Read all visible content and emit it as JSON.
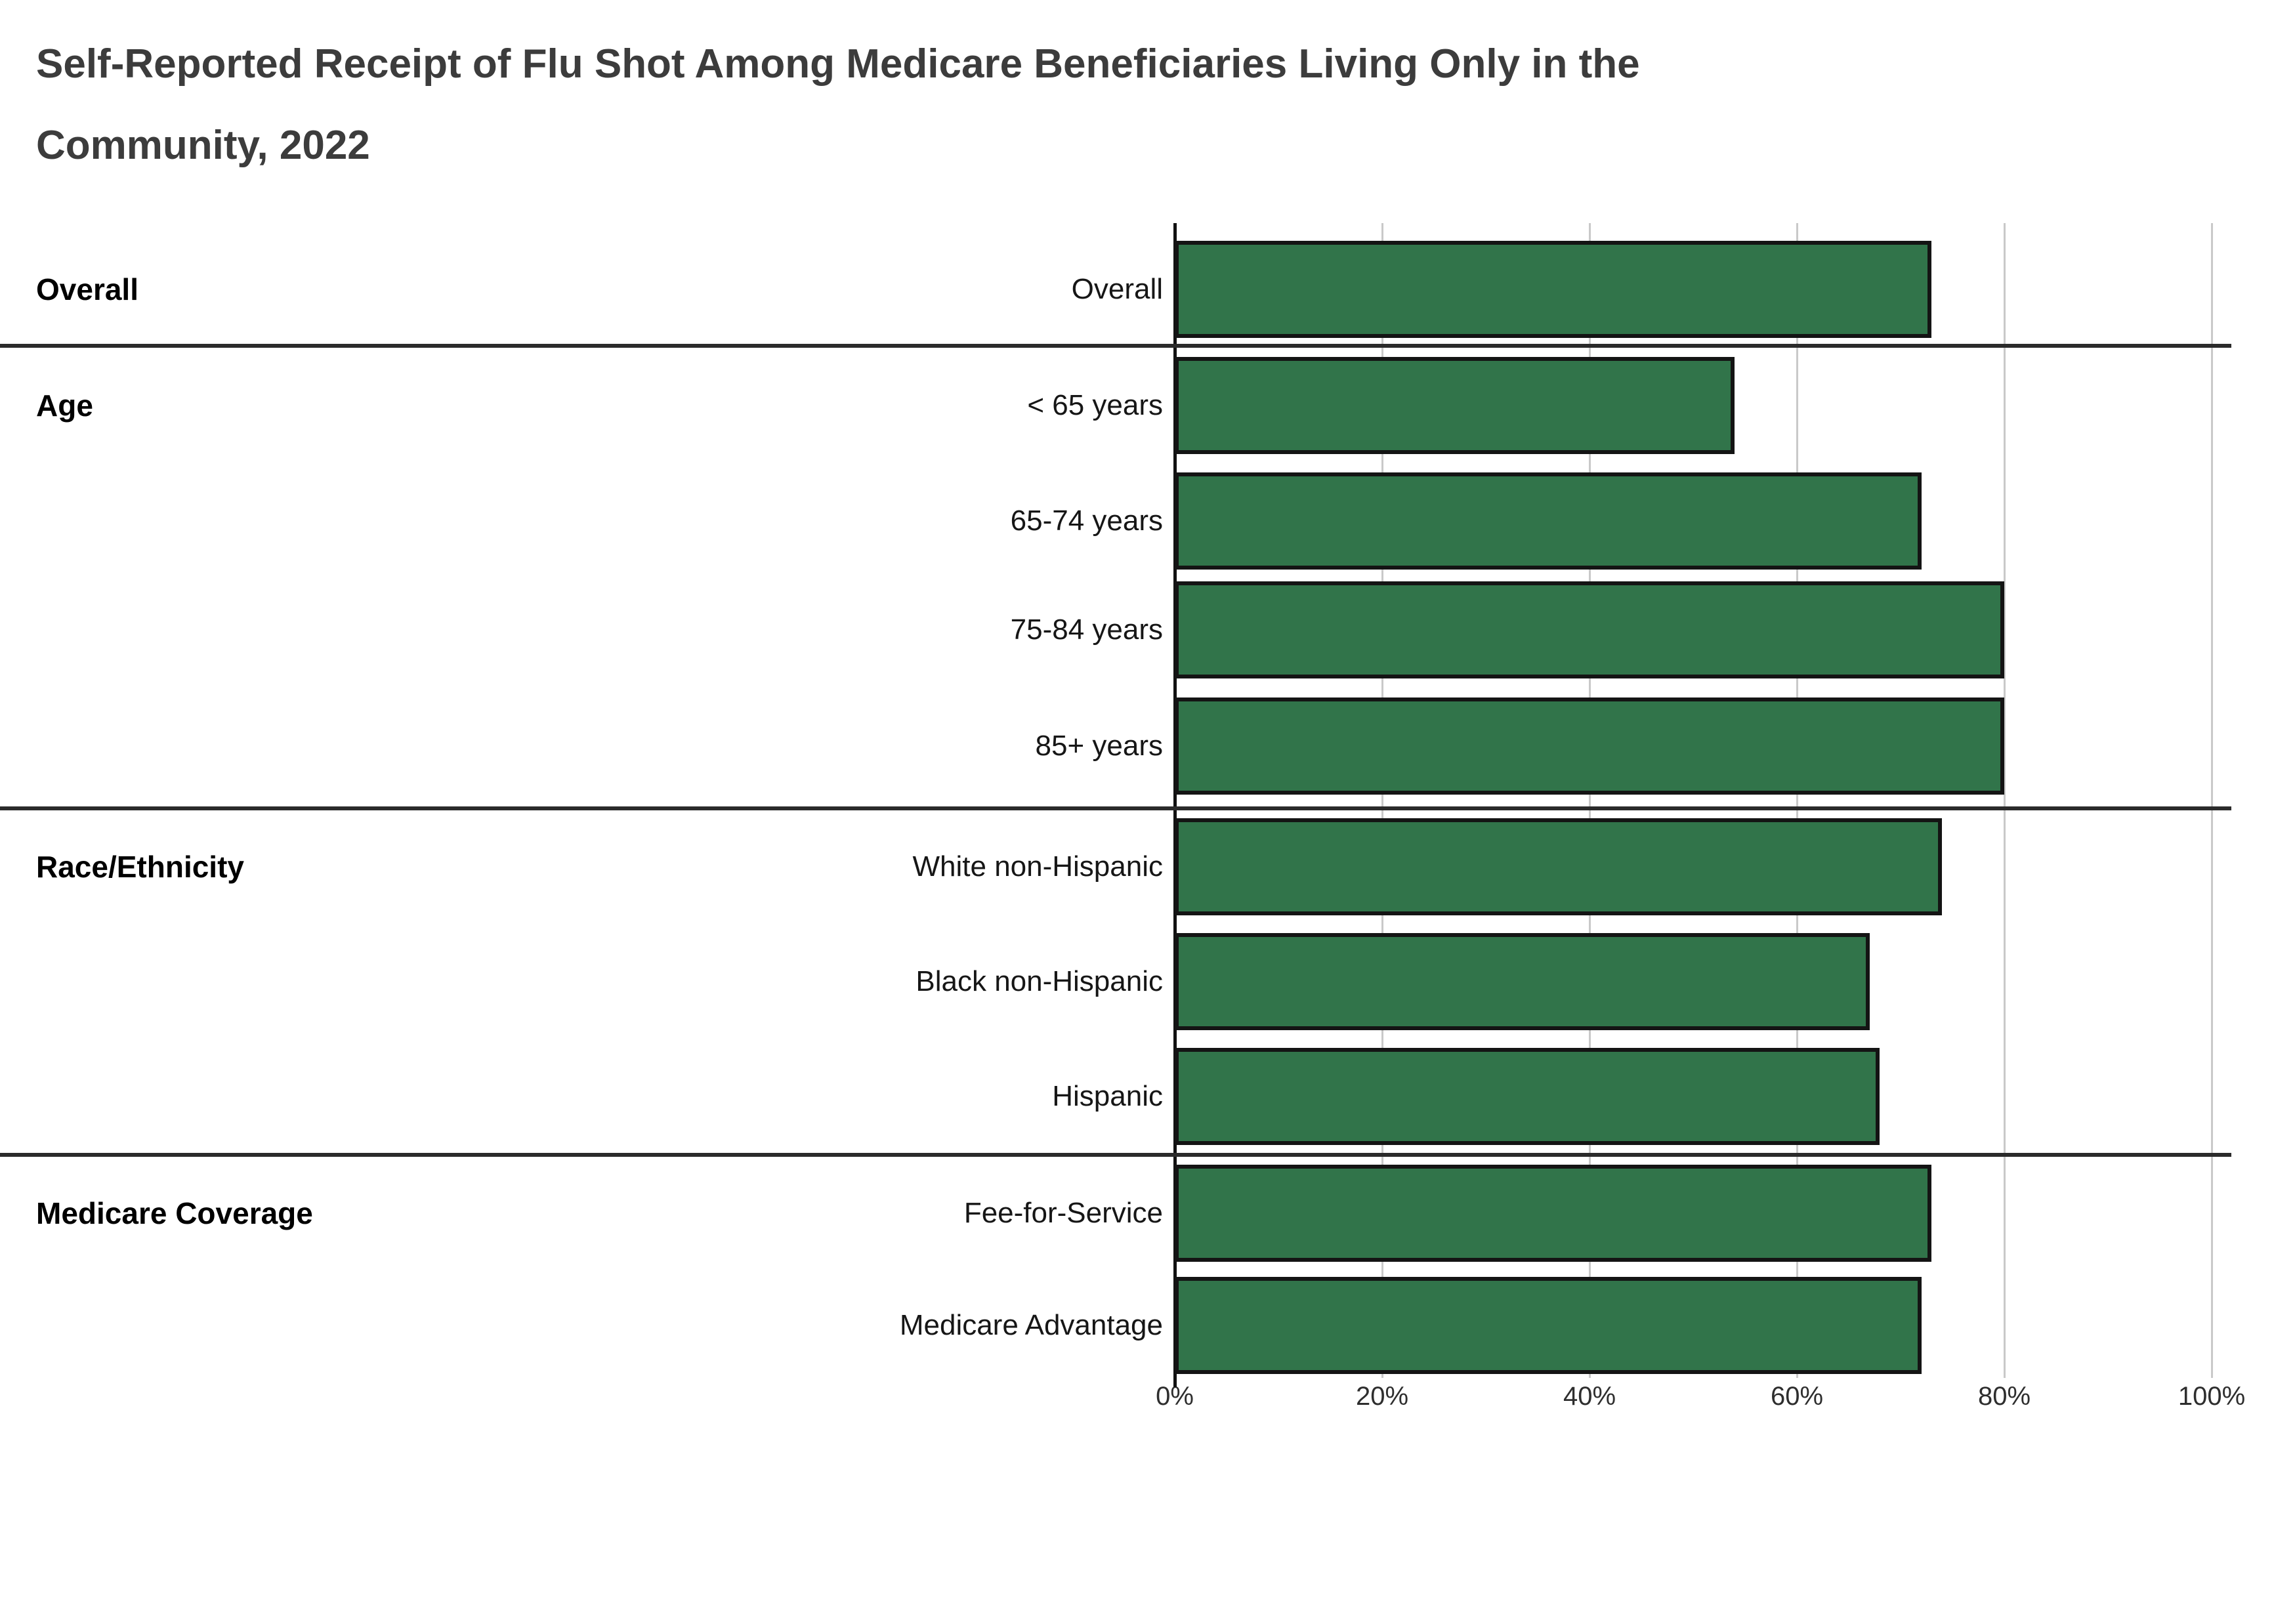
{
  "title": {
    "line1": "Self-Reported Receipt of Flu Shot Among Medicare Beneficiaries Living Only in the",
    "line2": "Community, 2022"
  },
  "chart_data": {
    "type": "bar",
    "orientation": "horizontal",
    "title": "Self-Reported Receipt of Flu Shot Among Medicare Beneficiaries Living Only in the Community, 2022",
    "xlabel": "",
    "ylabel": "",
    "unit": "%",
    "xlim": [
      0,
      100
    ],
    "x_tick_labels": [
      "0%",
      "20%",
      "40%",
      "60%",
      "80%",
      "100%"
    ],
    "x_tick_values": [
      0,
      20,
      40,
      60,
      80,
      100
    ],
    "grid": true,
    "legend": "none",
    "bar_color": "#31744a",
    "bar_border_color": "#141414",
    "groups": [
      {
        "label": "Overall",
        "rows": [
          {
            "label": "Overall",
            "value": 73
          }
        ]
      },
      {
        "label": "Age",
        "rows": [
          {
            "label": "< 65 years",
            "value": 54
          },
          {
            "label": "65-74 years",
            "value": 72
          },
          {
            "label": "75-84 years",
            "value": 80
          },
          {
            "label": "85+ years",
            "value": 80
          }
        ]
      },
      {
        "label": "Race/Ethnicity",
        "rows": [
          {
            "label": "White non-Hispanic",
            "value": 74
          },
          {
            "label": "Black non-Hispanic",
            "value": 67
          },
          {
            "label": "Hispanic",
            "value": 68
          }
        ]
      },
      {
        "label": "Medicare Coverage",
        "rows": [
          {
            "label": "Fee-for-Service",
            "value": 73
          },
          {
            "label": "Medicare Advantage",
            "value": 72
          }
        ]
      }
    ]
  }
}
